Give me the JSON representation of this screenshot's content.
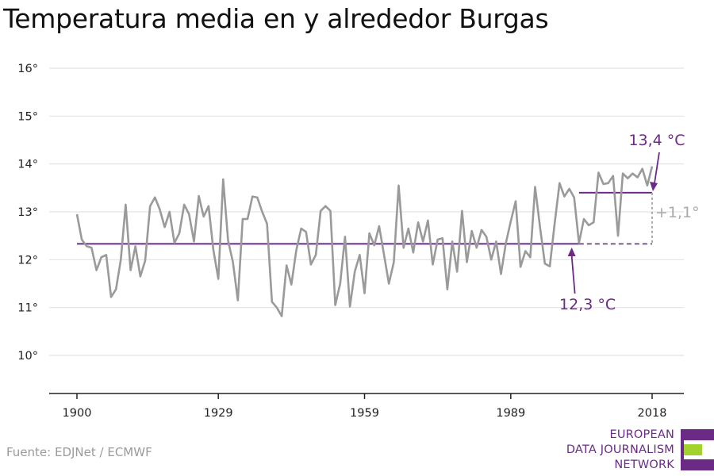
{
  "title": "Temperatura media en y alrededor Burgas",
  "source": "Fuente: EDJNet / ECMWF",
  "logo": {
    "lines": [
      "EUROPEAN",
      "DATA JOURNALISM",
      "NETWORK"
    ],
    "colors": {
      "purple": "#6a2a86",
      "green": "#a3d12e"
    }
  },
  "colors": {
    "series": "#9a9a9a",
    "average": "#6a2a86",
    "delta": "#aaaaaa",
    "grid": "#e3e3e3",
    "axis": "#222222"
  },
  "chart_data": {
    "type": "line",
    "title": "Temperatura media en y alrededor Burgas",
    "xlabel": "",
    "ylabel": "",
    "xlim": [
      1900,
      2018
    ],
    "ylim": [
      10,
      16
    ],
    "yticks": [
      10,
      11,
      12,
      13,
      14,
      15,
      16
    ],
    "ytick_labels": [
      "10°",
      "11°",
      "12°",
      "13°",
      "14°",
      "15°",
      "16°"
    ],
    "xticks": [
      1900,
      1929,
      1959,
      1989,
      2018
    ],
    "xtick_labels": [
      "1900",
      "1929",
      "1959",
      "1989",
      "2018"
    ],
    "grid": true,
    "series": [
      {
        "x": [
          1900,
          1901,
          1902,
          1903,
          1904,
          1905,
          1906,
          1907,
          1908,
          1909,
          1910,
          1911,
          1912,
          1913,
          1914,
          1915,
          1916,
          1917,
          1918,
          1919,
          1920,
          1921,
          1922,
          1923,
          1924,
          1925,
          1926,
          1927,
          1928,
          1929,
          1930,
          1931,
          1932,
          1933,
          1934,
          1935,
          1936,
          1937,
          1938,
          1939,
          1940,
          1941,
          1942,
          1943,
          1944,
          1945,
          1946,
          1947,
          1948,
          1949,
          1950,
          1951,
          1952,
          1953,
          1954,
          1955,
          1956,
          1957,
          1958,
          1959,
          1960,
          1961,
          1962,
          1963,
          1964,
          1965,
          1966,
          1967,
          1968,
          1969,
          1970,
          1971,
          1972,
          1973,
          1974,
          1975,
          1976,
          1977,
          1978,
          1979,
          1980,
          1981,
          1982,
          1983,
          1984,
          1985,
          1986,
          1987,
          1988,
          1989,
          1990,
          1991,
          1992,
          1993,
          1994,
          1995,
          1996,
          1997,
          1998,
          1999,
          2000,
          2001,
          2002,
          2003,
          2004,
          2005,
          2006,
          2007,
          2008,
          2009,
          2010,
          2011,
          2012,
          2013,
          2014,
          2015,
          2016,
          2017,
          2018
        ],
        "values": [
          12.95,
          12.42,
          12.28,
          12.25,
          11.78,
          12.05,
          12.1,
          11.22,
          11.38,
          12.0,
          13.15,
          11.78,
          12.28,
          11.65,
          11.98,
          13.12,
          13.3,
          13.05,
          12.68,
          13.0,
          12.35,
          12.55,
          13.15,
          12.95,
          12.38,
          13.33,
          12.9,
          13.12,
          12.2,
          11.6,
          13.68,
          12.4,
          11.95,
          11.15,
          12.85,
          12.85,
          13.32,
          13.3,
          13.0,
          12.75,
          11.12,
          11.0,
          10.82,
          11.88,
          11.48,
          12.2,
          12.65,
          12.58,
          11.9,
          12.1,
          13.02,
          13.12,
          13.02,
          11.05,
          11.5,
          12.48,
          11.02,
          11.75,
          12.1,
          11.3,
          12.55,
          12.3,
          12.7,
          12.1,
          11.5,
          11.95,
          13.55,
          12.25,
          12.65,
          12.15,
          12.78,
          12.38,
          12.82,
          11.9,
          12.42,
          12.45,
          11.38,
          12.38,
          11.75,
          13.02,
          11.95,
          12.6,
          12.25,
          12.62,
          12.48,
          12.0,
          12.38,
          11.7,
          12.35,
          12.8,
          13.22,
          11.85,
          12.18,
          12.05,
          13.52,
          12.68,
          11.92,
          11.86,
          12.75,
          13.6,
          13.32,
          13.48,
          13.3,
          12.35,
          12.85,
          12.72,
          12.78,
          13.82,
          13.58,
          13.6,
          13.75,
          12.5,
          13.8,
          13.7,
          13.8,
          13.72,
          13.9,
          13.55,
          13.95
        ]
      }
    ],
    "reference_lines": [
      {
        "label": "12,3 °C",
        "value": 12.33,
        "x_start": 1900,
        "x_end": 2003
      },
      {
        "label": "13,4 °C",
        "value": 13.4,
        "x_start": 2003,
        "x_end": 2018
      }
    ],
    "delta_label": "+1,1°"
  }
}
